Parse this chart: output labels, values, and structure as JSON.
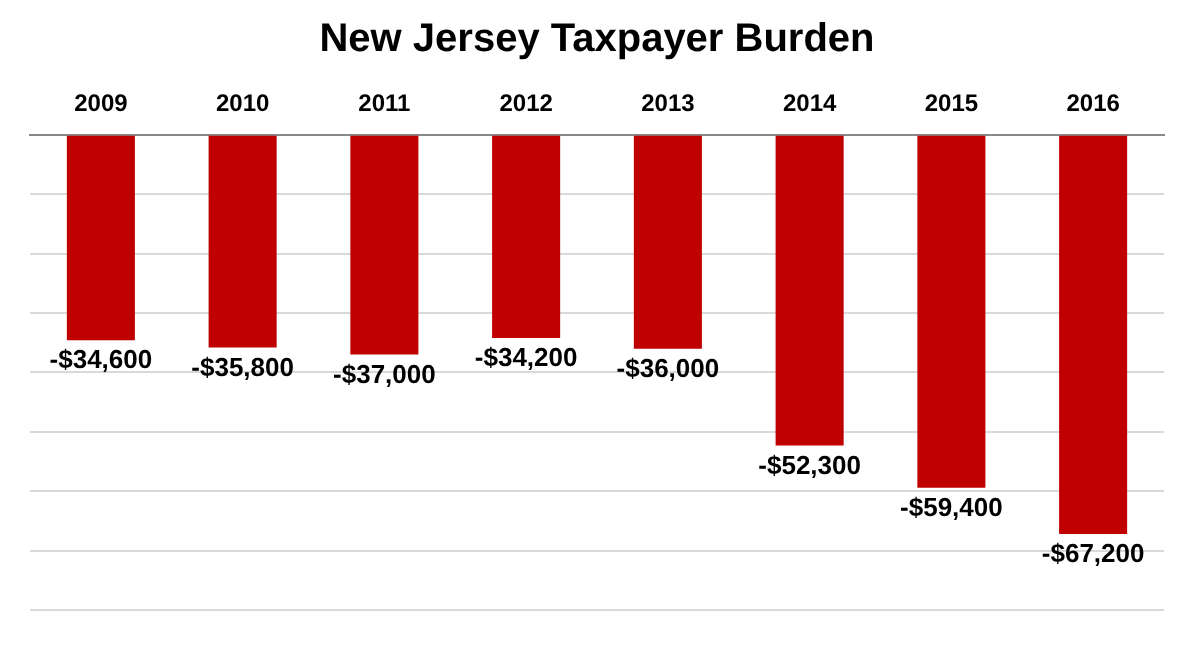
{
  "chart_data": {
    "type": "bar",
    "title": "New Jersey Taxpayer Burden",
    "categories": [
      "2009",
      "2010",
      "2011",
      "2012",
      "2013",
      "2014",
      "2015",
      "2016"
    ],
    "values": [
      -34600,
      -35800,
      -37000,
      -34200,
      -36000,
      -52300,
      -59400,
      -67200
    ],
    "color": "#c00000",
    "value_labels": [
      "-$34,600",
      "-$35,800",
      "-$37,000",
      "-$34,200",
      "-$36,000",
      "-$52,300",
      "-$59,400",
      "-$67,200"
    ],
    "ylim": [
      -80000,
      0
    ],
    "yticks": [
      {
        "value": -80000,
        "label": null
      },
      {
        "value": -70000,
        "label": null
      },
      {
        "value": -60000,
        "label": null
      },
      {
        "value": -50000,
        "label": null
      },
      {
        "value": -40000,
        "label": null
      },
      {
        "value": -30000,
        "label": null
      },
      {
        "value": -20000,
        "label": null
      },
      {
        "value": -10000,
        "label": null
      },
      {
        "value": 0,
        "label": null
      }
    ],
    "grid": "y",
    "tick_labels": "x",
    "legend": false
  }
}
